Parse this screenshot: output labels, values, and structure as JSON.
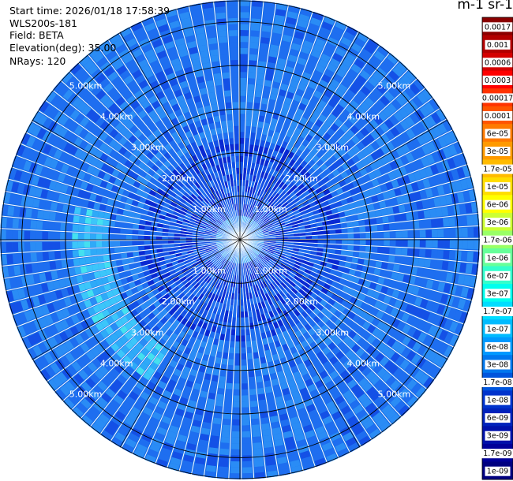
{
  "header": {
    "start_time": "Start time: 2026/01/18 17:58:39",
    "instrument": "WLS200s-181",
    "field": "Field: BETA",
    "elevation": "Elevation(deg): 35.00",
    "nrays": "NRays: 120"
  },
  "chart_data": {
    "type": "heatmap",
    "projection": "polar-ppi",
    "field": "BETA",
    "elevation_deg": 35.0,
    "n_rays": 120,
    "range_rings_km": [
      1,
      2,
      3,
      4,
      5
    ],
    "ring_labels": [
      "1.00km",
      "2.00km",
      "3.00km",
      "4.00km",
      "5.00km"
    ],
    "max_range_km": 5.5,
    "colorbar": {
      "title": "m-1 sr-1",
      "tick_labels": [
        "0.0017",
        "0.001",
        "0.0006",
        "0.0003",
        "0.00017",
        "0.0001",
        "6e-05",
        "3e-05",
        "1.7e-05",
        "1e-05",
        "6e-06",
        "3e-06",
        "1.7e-06",
        "1e-06",
        "6e-07",
        "3e-07",
        "1.7e-07",
        "1e-07",
        "6e-08",
        "3e-08",
        "1.7e-08",
        "1e-08",
        "6e-09",
        "3e-09",
        "1.7e-09",
        "1e-09"
      ],
      "colors": [
        "#8b0000",
        "#b20000",
        "#d40000",
        "#ff0000",
        "#ff3300",
        "#ff5500",
        "#ff7a00",
        "#ff9a00",
        "#ffbb00",
        "#ffdd00",
        "#ffff00",
        "#ccff33",
        "#99ff66",
        "#66ff99",
        "#33ffcc",
        "#00ffee",
        "#00ddff",
        "#00bbff",
        "#0099ff",
        "#0077ee",
        "#0055dd",
        "#0033cc",
        "#0022bb",
        "#0011aa",
        "#000099",
        "#000080"
      ]
    },
    "typical_range_bin_values": [
      {
        "range_km": 0.5,
        "beta": "1.7e-07"
      },
      {
        "range_km": 1.0,
        "beta": "3e-08"
      },
      {
        "range_km": 2.0,
        "beta": "1.7e-08"
      },
      {
        "range_km": 3.0,
        "beta": "6e-08"
      },
      {
        "range_km": 4.0,
        "beta": "6e-08"
      },
      {
        "range_km": 5.0,
        "beta": "6e-08"
      }
    ],
    "grid": true
  }
}
